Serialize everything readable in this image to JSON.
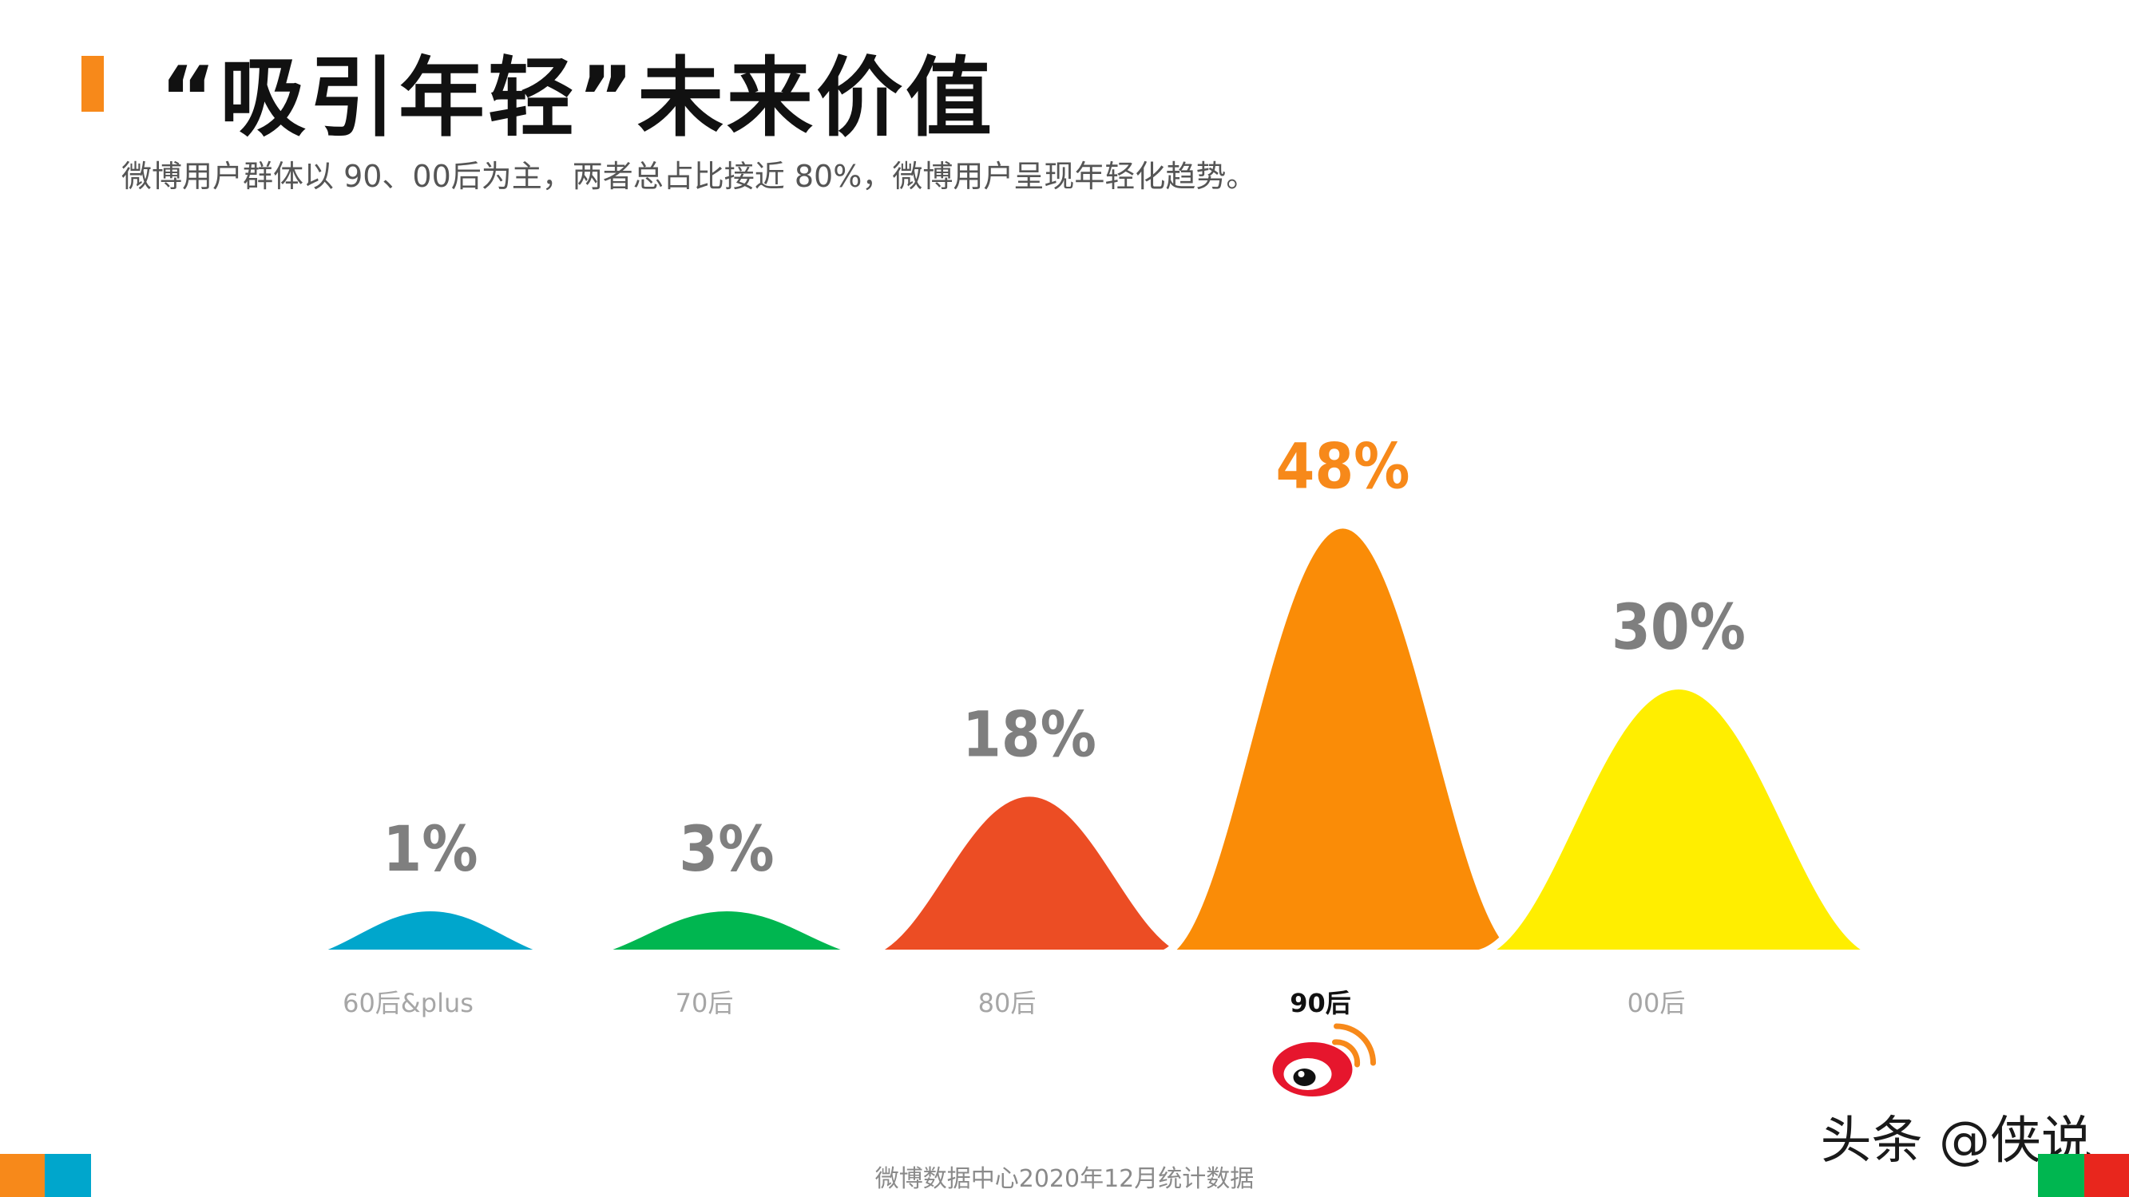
{
  "title": "“吸引年轻”未来价值",
  "subtitle": "微博用户群体以 90、00后为主，两者总占比接近 80%，微博用户呈现年轻化趋势。",
  "source": "微博数据中心2020年12月统计数据",
  "watermark": "头条 @侠说",
  "colors": {
    "accent": "#F7891A",
    "label_default": "#7f7f7f",
    "label_highlight": "#F7891A",
    "category_default": "#a6a6a6",
    "category_highlight": "#111111"
  },
  "logo_icon": "weibo-logo-icon",
  "chart_data": {
    "type": "area",
    "categories": [
      "60后&plus",
      "70后",
      "80后",
      "90后",
      "00后"
    ],
    "values": [
      1,
      3,
      18,
      48,
      30
    ],
    "data_labels": [
      "1%",
      "3%",
      "18%",
      "48%",
      "30%"
    ],
    "colors": [
      "#00A6CC",
      "#00B650",
      "#EC4D24",
      "#FA8C07",
      "#FFEE00"
    ],
    "highlight": "90后",
    "unit": "%"
  }
}
